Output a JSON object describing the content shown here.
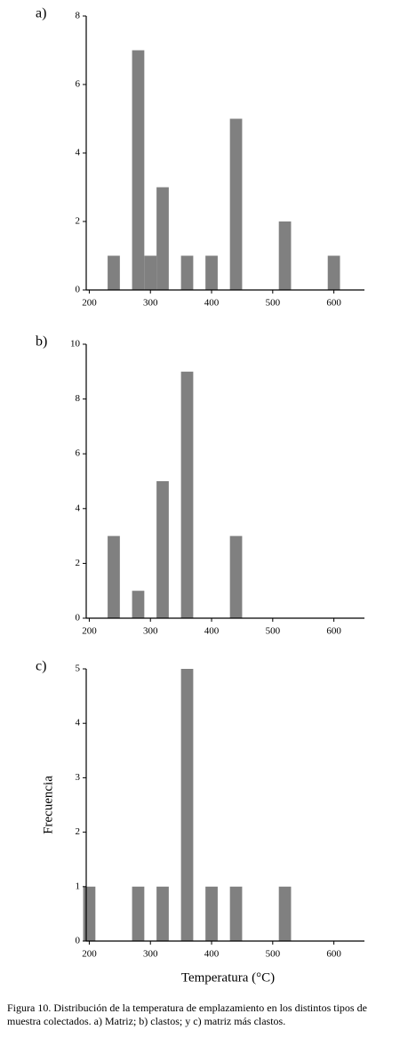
{
  "chart_data": [
    {
      "type": "histogram",
      "panel_label": "a)",
      "color": "#808080",
      "bins": [
        230,
        250,
        270,
        290,
        310,
        330,
        350,
        370,
        390,
        410,
        430,
        450,
        470,
        490,
        510,
        530,
        550,
        570,
        590,
        610
      ],
      "values": [
        1,
        0,
        7,
        1,
        3,
        0,
        1,
        0,
        1,
        0,
        5,
        0,
        0,
        0,
        2,
        0,
        0,
        0,
        1
      ],
      "xlim": [
        195,
        650
      ],
      "xticks": [
        200,
        300,
        400,
        500,
        600
      ],
      "ylim": [
        0,
        8
      ],
      "yticks": [
        0,
        2,
        4,
        6,
        8
      ]
    },
    {
      "type": "histogram",
      "panel_label": "b)",
      "color": "#808080",
      "bins": [
        230,
        250,
        270,
        290,
        310,
        330,
        350,
        370,
        390,
        410,
        430,
        450
      ],
      "values": [
        3,
        0,
        1,
        0,
        5,
        0,
        9,
        0,
        0,
        0,
        3
      ],
      "xlim": [
        195,
        650
      ],
      "xticks": [
        200,
        300,
        400,
        500,
        600
      ],
      "ylim": [
        0,
        10
      ],
      "yticks": [
        0,
        2,
        4,
        6,
        8,
        10
      ]
    },
    {
      "type": "histogram",
      "panel_label": "c)",
      "color": "#808080",
      "bins": [
        190,
        210,
        230,
        250,
        270,
        290,
        310,
        330,
        350,
        370,
        390,
        410,
        430,
        450,
        470,
        490,
        510,
        530
      ],
      "values": [
        1,
        0,
        0,
        0,
        1,
        0,
        1,
        0,
        5,
        0,
        1,
        0,
        1,
        0,
        0,
        0,
        1
      ],
      "xlim": [
        195,
        650
      ],
      "xticks": [
        200,
        300,
        400,
        500,
        600
      ],
      "ylim": [
        0,
        5
      ],
      "yticks": [
        0,
        1,
        2,
        3,
        4,
        5
      ],
      "x_label": "Temperatura (°C)",
      "y_label": "Frecuencia"
    }
  ],
  "caption": "Figura 10. Distribución de la temperatura de emplazamiento en los distintos tipos de muestra colectados. a) Matriz; b) clastos; y c) matriz más clastos."
}
